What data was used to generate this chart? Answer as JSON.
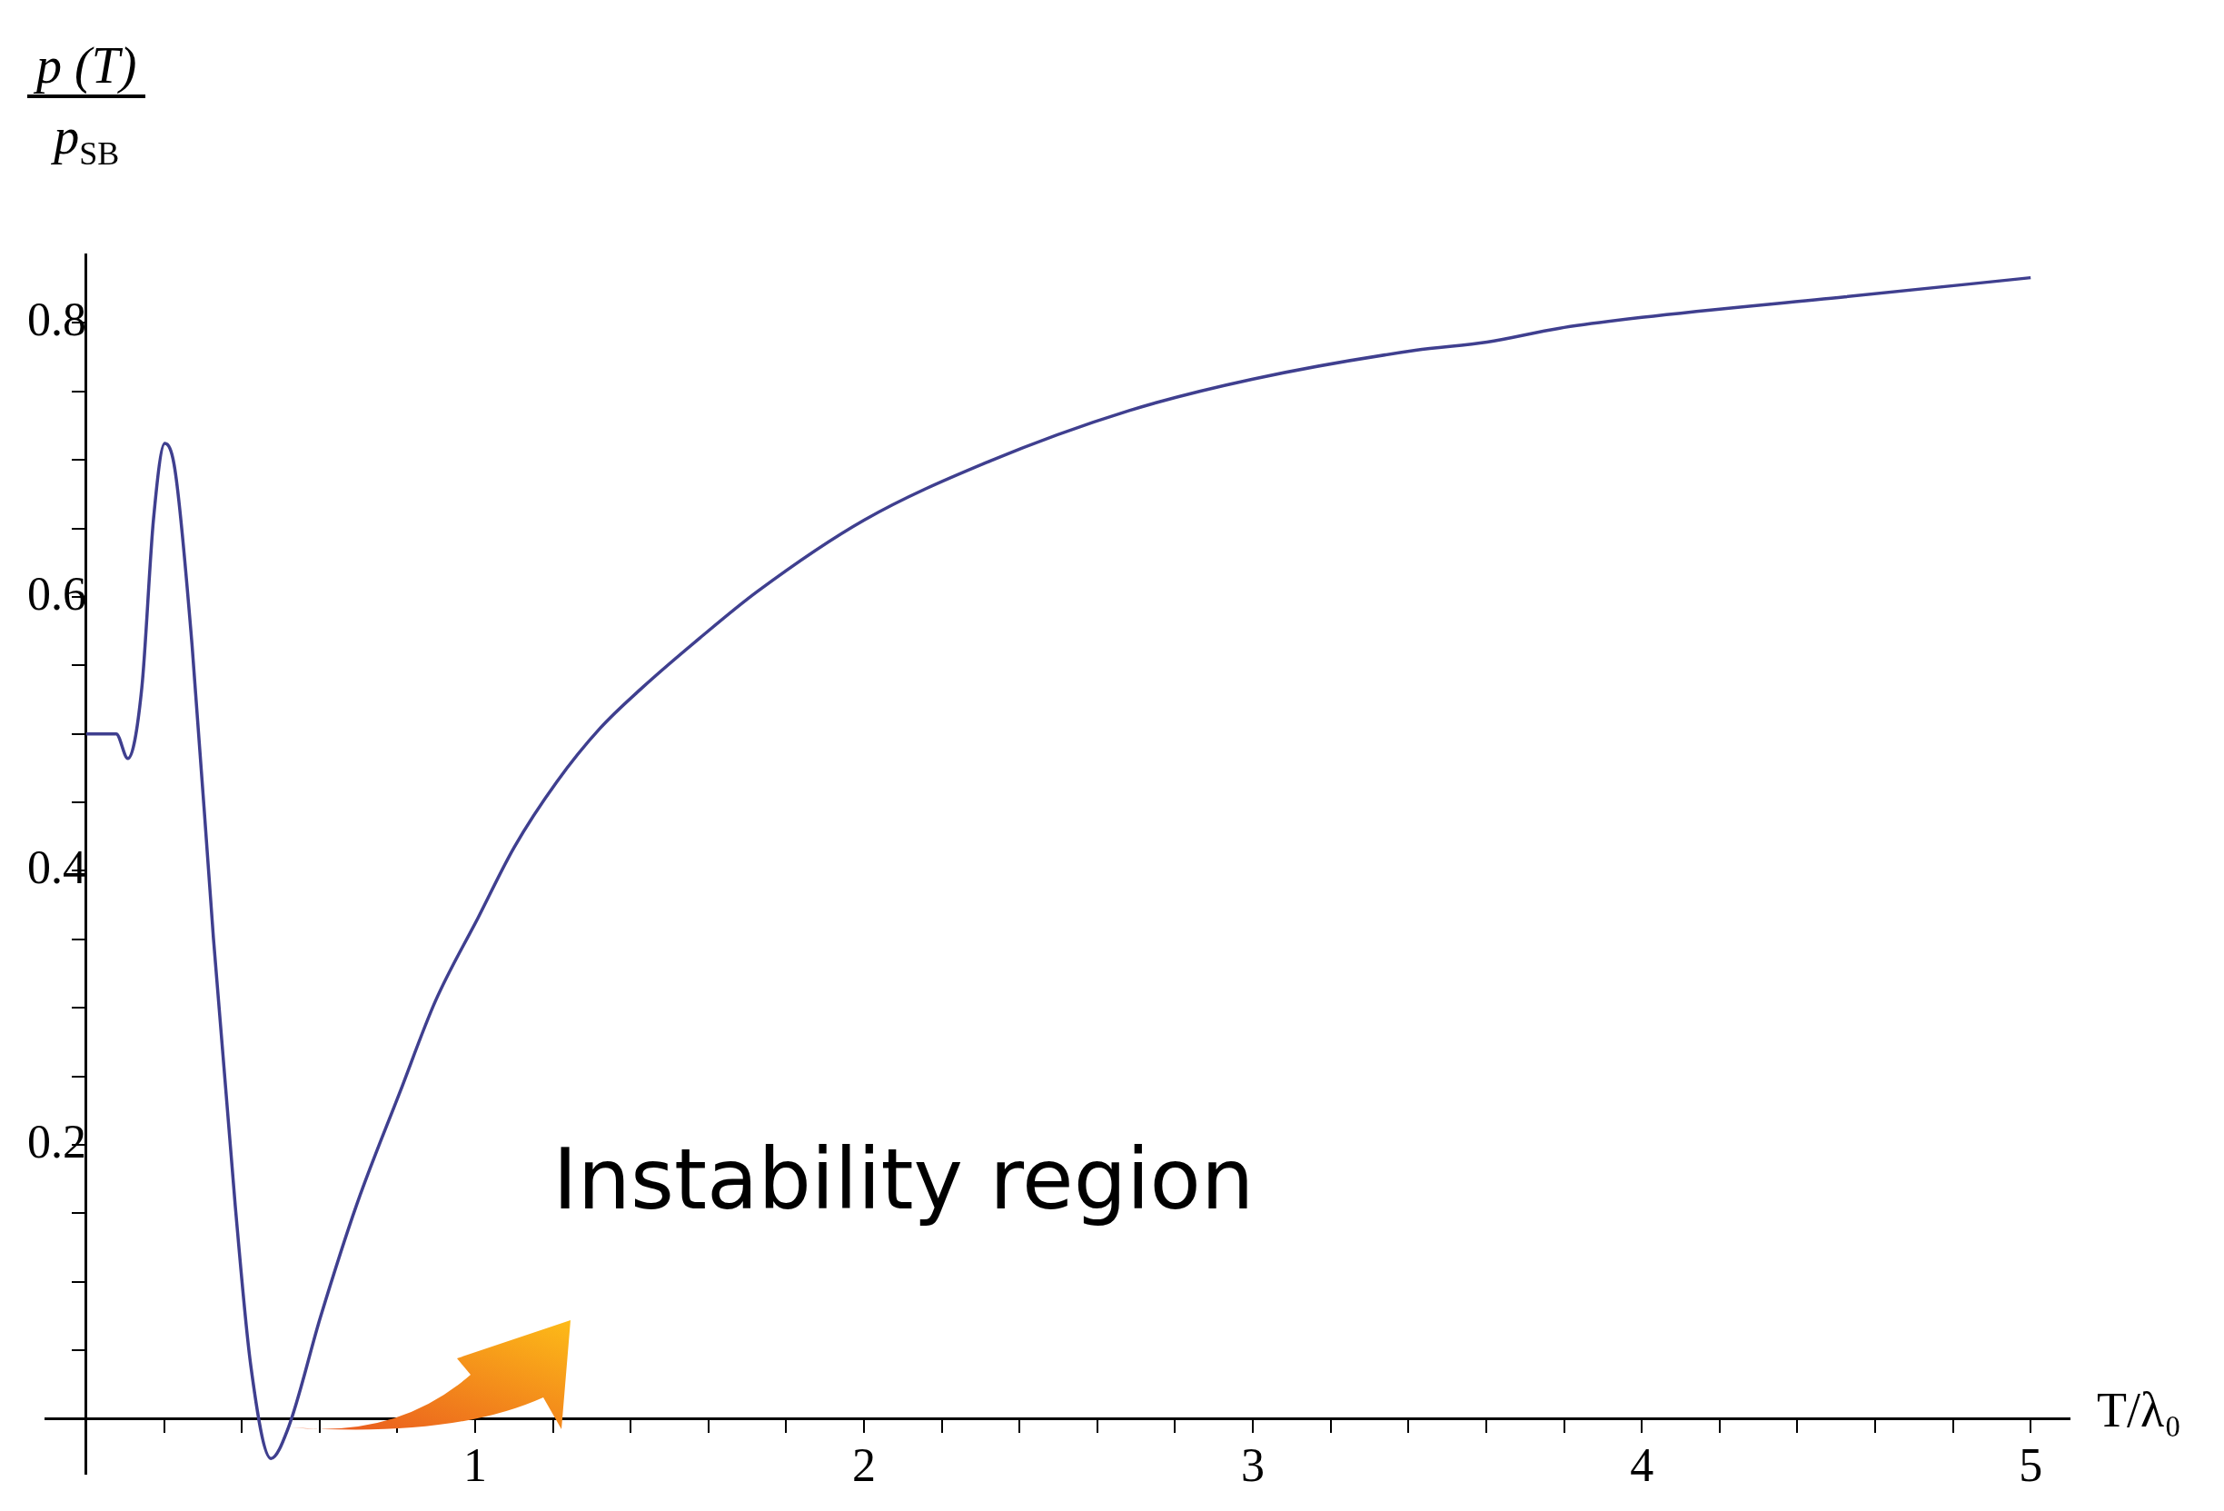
{
  "chart_data": {
    "type": "line",
    "xlabel": "T/λ₀",
    "ylabel": "p (T) p$_{SB}$",
    "annotations": [
      "Instability region"
    ],
    "x": [
      0,
      0.077,
      0.107,
      0.143,
      0.173,
      0.202,
      0.228,
      0.272,
      0.327,
      0.383,
      0.423,
      0.475,
      0.519,
      0.603,
      0.695,
      0.806,
      0.898,
      1.008,
      1.1,
      1.21,
      1.321,
      1.431,
      1.578,
      1.726,
      2.0,
      2.314,
      2.682,
      3.0,
      3.418,
      3.602,
      3.786,
      4.0,
      4.522,
      5.0
    ],
    "series": [
      {
        "color": "#3f3f8f",
        "values": [
          0.5,
          0.5,
          0.482,
          0.534,
          0.657,
          0.712,
          0.693,
          0.565,
          0.351,
          0.156,
          0.039,
          -0.029,
          -0.007,
          0.075,
          0.156,
          0.238,
          0.305,
          0.366,
          0.417,
          0.465,
          0.504,
          0.534,
          0.57,
          0.604,
          0.656,
          0.698,
          0.736,
          0.759,
          0.78,
          0.786,
          0.796,
          0.804,
          0.819,
          0.833
        ]
      }
    ],
    "xlim": [
      -0.105,
      5.1
    ],
    "ylim": [
      -0.04,
      0.85
    ],
    "xticks": [
      {
        "value": 0.2,
        "label": null
      },
      {
        "value": 0.4,
        "label": null
      },
      {
        "value": 0.6,
        "label": null
      },
      {
        "value": 0.8,
        "label": null
      },
      1,
      {
        "value": 1.2,
        "label": null
      },
      {
        "value": 1.4,
        "label": null
      },
      {
        "value": 1.6,
        "label": null
      },
      {
        "value": 1.8,
        "label": null
      },
      2,
      {
        "value": 2.2,
        "label": null
      },
      {
        "value": 2.4,
        "label": null
      },
      {
        "value": 2.6,
        "label": null
      },
      {
        "value": 2.8,
        "label": null
      },
      3,
      {
        "value": 3.2,
        "label": null
      },
      {
        "value": 3.4,
        "label": null
      },
      {
        "value": 3.6,
        "label": null
      },
      {
        "value": 3.8,
        "label": null
      },
      4,
      {
        "value": 4.2,
        "label": null
      },
      {
        "value": 4.4,
        "label": null
      },
      {
        "value": 4.6,
        "label": null
      },
      {
        "value": 4.8,
        "label": null
      },
      5
    ],
    "yticks": [
      {
        "value": 0.05,
        "label": null
      },
      {
        "value": 0.1,
        "label": null
      },
      {
        "value": 0.15,
        "label": null
      },
      0.2,
      {
        "value": 0.25,
        "label": null
      },
      {
        "value": 0.3,
        "label": null
      },
      {
        "value": 0.35,
        "label": null
      },
      0.4,
      {
        "value": 0.45,
        "label": null
      },
      {
        "value": 0.5,
        "label": null
      },
      {
        "value": 0.55,
        "label": null
      },
      0.6,
      {
        "value": 0.65,
        "label": null
      },
      {
        "value": 0.7,
        "label": null
      },
      {
        "value": 0.75,
        "label": null
      },
      0.8
    ],
    "grid": false,
    "legend": false,
    "marker": "none",
    "line_style": "solid"
  }
}
